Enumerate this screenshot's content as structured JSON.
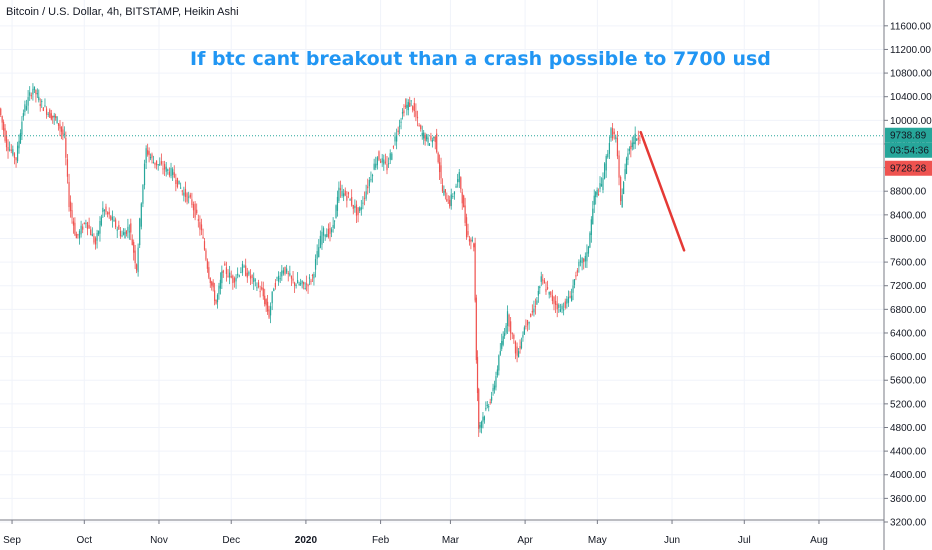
{
  "header": {
    "symbol": "Bitcoin / U.S. Dollar, 4h, BITSTAMP, Heikin Ashi"
  },
  "annotation": {
    "text": "If btc cant breakout than a crash possible to 7700 usd",
    "color": "#2196f3"
  },
  "price_scale": {
    "current_price": "9738.89",
    "countdown": "03:54:36",
    "last_close": "9728.28",
    "current_price_color": "#26a69a",
    "last_close_color": "#ef5350"
  },
  "colors": {
    "up": "#26a69a",
    "down": "#ef5350",
    "projection": "#e53935",
    "grid": "#f0f3fa",
    "axis": "#787b86"
  },
  "chart_data": {
    "type": "line",
    "title": "",
    "xlabel": "",
    "ylabel": "",
    "ylim": [
      3200,
      11800
    ],
    "y_ticks": [
      3200,
      3600,
      4000,
      4400,
      4800,
      5200,
      5600,
      6000,
      6400,
      6800,
      7200,
      7600,
      8000,
      8400,
      8800,
      9200,
      9600,
      10000,
      10400,
      10800,
      11200,
      11600
    ],
    "y_tick_labels": [
      "3200.00",
      "3600.00",
      "4000.00",
      "4400.00",
      "4800.00",
      "5200.00",
      "5600.00",
      "6000.00",
      "6400.00",
      "6800.00",
      "7200.00",
      "7600.00",
      "8000.00",
      "8400.00",
      "8800.00",
      "9200.00",
      "9600.00",
      "10000.00",
      "10400.00",
      "10800.00",
      "11200.00",
      "11600.00"
    ],
    "x_range": [
      "2019-08-27",
      "2020-08-28"
    ],
    "x_ticks": [
      {
        "date": "2019-09-01",
        "label": "Sep",
        "bold": false
      },
      {
        "date": "2019-10-01",
        "label": "Oct",
        "bold": false
      },
      {
        "date": "2019-11-01",
        "label": "Nov",
        "bold": false
      },
      {
        "date": "2019-12-01",
        "label": "Dec",
        "bold": false
      },
      {
        "date": "2020-01-01",
        "label": "2020",
        "bold": true
      },
      {
        "date": "2020-02-01",
        "label": "Feb",
        "bold": false
      },
      {
        "date": "2020-03-01",
        "label": "Mar",
        "bold": false
      },
      {
        "date": "2020-04-01",
        "label": "Apr",
        "bold": false
      },
      {
        "date": "2020-05-01",
        "label": "May",
        "bold": false
      },
      {
        "date": "2020-06-01",
        "label": "Jun",
        "bold": false
      },
      {
        "date": "2020-07-01",
        "label": "Jul",
        "bold": false
      },
      {
        "date": "2020-08-01",
        "label": "Aug",
        "bold": false
      }
    ],
    "series": [
      {
        "values": [
          [
            "2019-08-27",
            10200
          ],
          [
            "2019-08-30",
            9600
          ],
          [
            "2019-09-03",
            9350
          ],
          [
            "2019-09-06",
            10150
          ],
          [
            "2019-09-10",
            10550
          ],
          [
            "2019-09-13",
            10300
          ],
          [
            "2019-09-17",
            10100
          ],
          [
            "2019-09-20",
            10000
          ],
          [
            "2019-09-23",
            9700
          ],
          [
            "2019-09-25",
            8600
          ],
          [
            "2019-09-28",
            8000
          ],
          [
            "2019-10-02",
            8300
          ],
          [
            "2019-10-06",
            7900
          ],
          [
            "2019-10-09",
            8500
          ],
          [
            "2019-10-13",
            8300
          ],
          [
            "2019-10-17",
            8050
          ],
          [
            "2019-10-20",
            8200
          ],
          [
            "2019-10-23",
            7500
          ],
          [
            "2019-10-25",
            8650
          ],
          [
            "2019-10-27",
            9500
          ],
          [
            "2019-10-30",
            9300
          ],
          [
            "2019-11-03",
            9200
          ],
          [
            "2019-11-07",
            9100
          ],
          [
            "2019-11-11",
            8800
          ],
          [
            "2019-11-15",
            8600
          ],
          [
            "2019-11-19",
            8100
          ],
          [
            "2019-11-22",
            7400
          ],
          [
            "2019-11-25",
            6900
          ],
          [
            "2019-11-28",
            7500
          ],
          [
            "2019-12-02",
            7300
          ],
          [
            "2019-12-06",
            7500
          ],
          [
            "2019-12-10",
            7300
          ],
          [
            "2019-12-14",
            7100
          ],
          [
            "2019-12-17",
            6700
          ],
          [
            "2019-12-19",
            7200
          ],
          [
            "2019-12-23",
            7500
          ],
          [
            "2019-12-27",
            7250
          ],
          [
            "2020-01-01",
            7200
          ],
          [
            "2020-01-04",
            7350
          ],
          [
            "2020-01-08",
            8100
          ],
          [
            "2020-01-12",
            8100
          ],
          [
            "2020-01-15",
            8800
          ],
          [
            "2020-01-19",
            8700
          ],
          [
            "2020-01-23",
            8400
          ],
          [
            "2020-01-27",
            8900
          ],
          [
            "2020-01-31",
            9400
          ],
          [
            "2020-02-04",
            9200
          ],
          [
            "2020-02-08",
            9800
          ],
          [
            "2020-02-11",
            10200
          ],
          [
            "2020-02-14",
            10300
          ],
          [
            "2020-02-18",
            9800
          ],
          [
            "2020-02-21",
            9650
          ],
          [
            "2020-02-24",
            9700
          ],
          [
            "2020-02-27",
            8800
          ],
          [
            "2020-03-01",
            8600
          ],
          [
            "2020-03-05",
            9050
          ],
          [
            "2020-03-08",
            8100
          ],
          [
            "2020-03-11",
            7900
          ],
          [
            "2020-03-12",
            6000
          ],
          [
            "2020-03-13",
            4800
          ],
          [
            "2020-03-16",
            5100
          ],
          [
            "2020-03-19",
            5400
          ],
          [
            "2020-03-22",
            6100
          ],
          [
            "2020-03-25",
            6700
          ],
          [
            "2020-03-29",
            6000
          ],
          [
            "2020-04-01",
            6500
          ],
          [
            "2020-04-05",
            6800
          ],
          [
            "2020-04-08",
            7300
          ],
          [
            "2020-04-12",
            7000
          ],
          [
            "2020-04-16",
            6800
          ],
          [
            "2020-04-20",
            7000
          ],
          [
            "2020-04-23",
            7500
          ],
          [
            "2020-04-27",
            7700
          ],
          [
            "2020-04-30",
            8700
          ],
          [
            "2020-05-03",
            8900
          ],
          [
            "2020-05-07",
            9800
          ],
          [
            "2020-05-09",
            9700
          ],
          [
            "2020-05-11",
            8600
          ],
          [
            "2020-05-14",
            9500
          ],
          [
            "2020-05-17",
            9700
          ],
          [
            "2020-05-19",
            9738.89
          ]
        ]
      }
    ],
    "current_price": 9738.89,
    "projection": {
      "from": [
        "2020-05-19",
        9800
      ],
      "to": [
        "2020-06-06",
        7800
      ]
    }
  }
}
